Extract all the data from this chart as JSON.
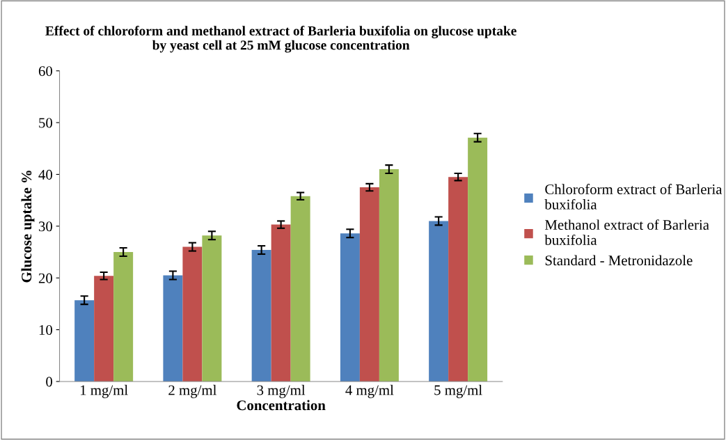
{
  "chart_data": {
    "type": "bar",
    "title": "Effect of chloroform and methanol extract of Barleria buxifolia on glucose uptake\nby yeast cell at 25 mM glucose concentration",
    "xlabel": "Concentration",
    "ylabel": "Glucose uptake %",
    "categories": [
      "1 mg/ml",
      "2 mg/ml",
      "3 mg/ml",
      "4 mg/ml",
      "5 mg/ml"
    ],
    "series": [
      {
        "name": "Chloroform extract of Barleria\nbuxifolia",
        "color": "#4f81bd",
        "values": [
          15.7,
          20.5,
          25.4,
          28.6,
          31.0
        ],
        "errors": [
          0.8,
          0.8,
          0.8,
          0.8,
          0.8
        ]
      },
      {
        "name": "Methanol extract of Barleria\nbuxifolia",
        "color": "#c0504d",
        "values": [
          20.4,
          26.0,
          30.3,
          37.5,
          39.5
        ],
        "errors": [
          0.7,
          0.8,
          0.7,
          0.7,
          0.7
        ]
      },
      {
        "name": "Standard - Metronidazole",
        "color": "#9bbb59",
        "values": [
          25.0,
          28.2,
          35.8,
          41.0,
          47.1
        ],
        "errors": [
          0.8,
          0.8,
          0.7,
          0.8,
          0.8
        ]
      }
    ],
    "ylim": [
      0,
      60
    ],
    "yticks": [
      0,
      10,
      20,
      30,
      40,
      50,
      60
    ],
    "grid": false,
    "legend": "right"
  }
}
